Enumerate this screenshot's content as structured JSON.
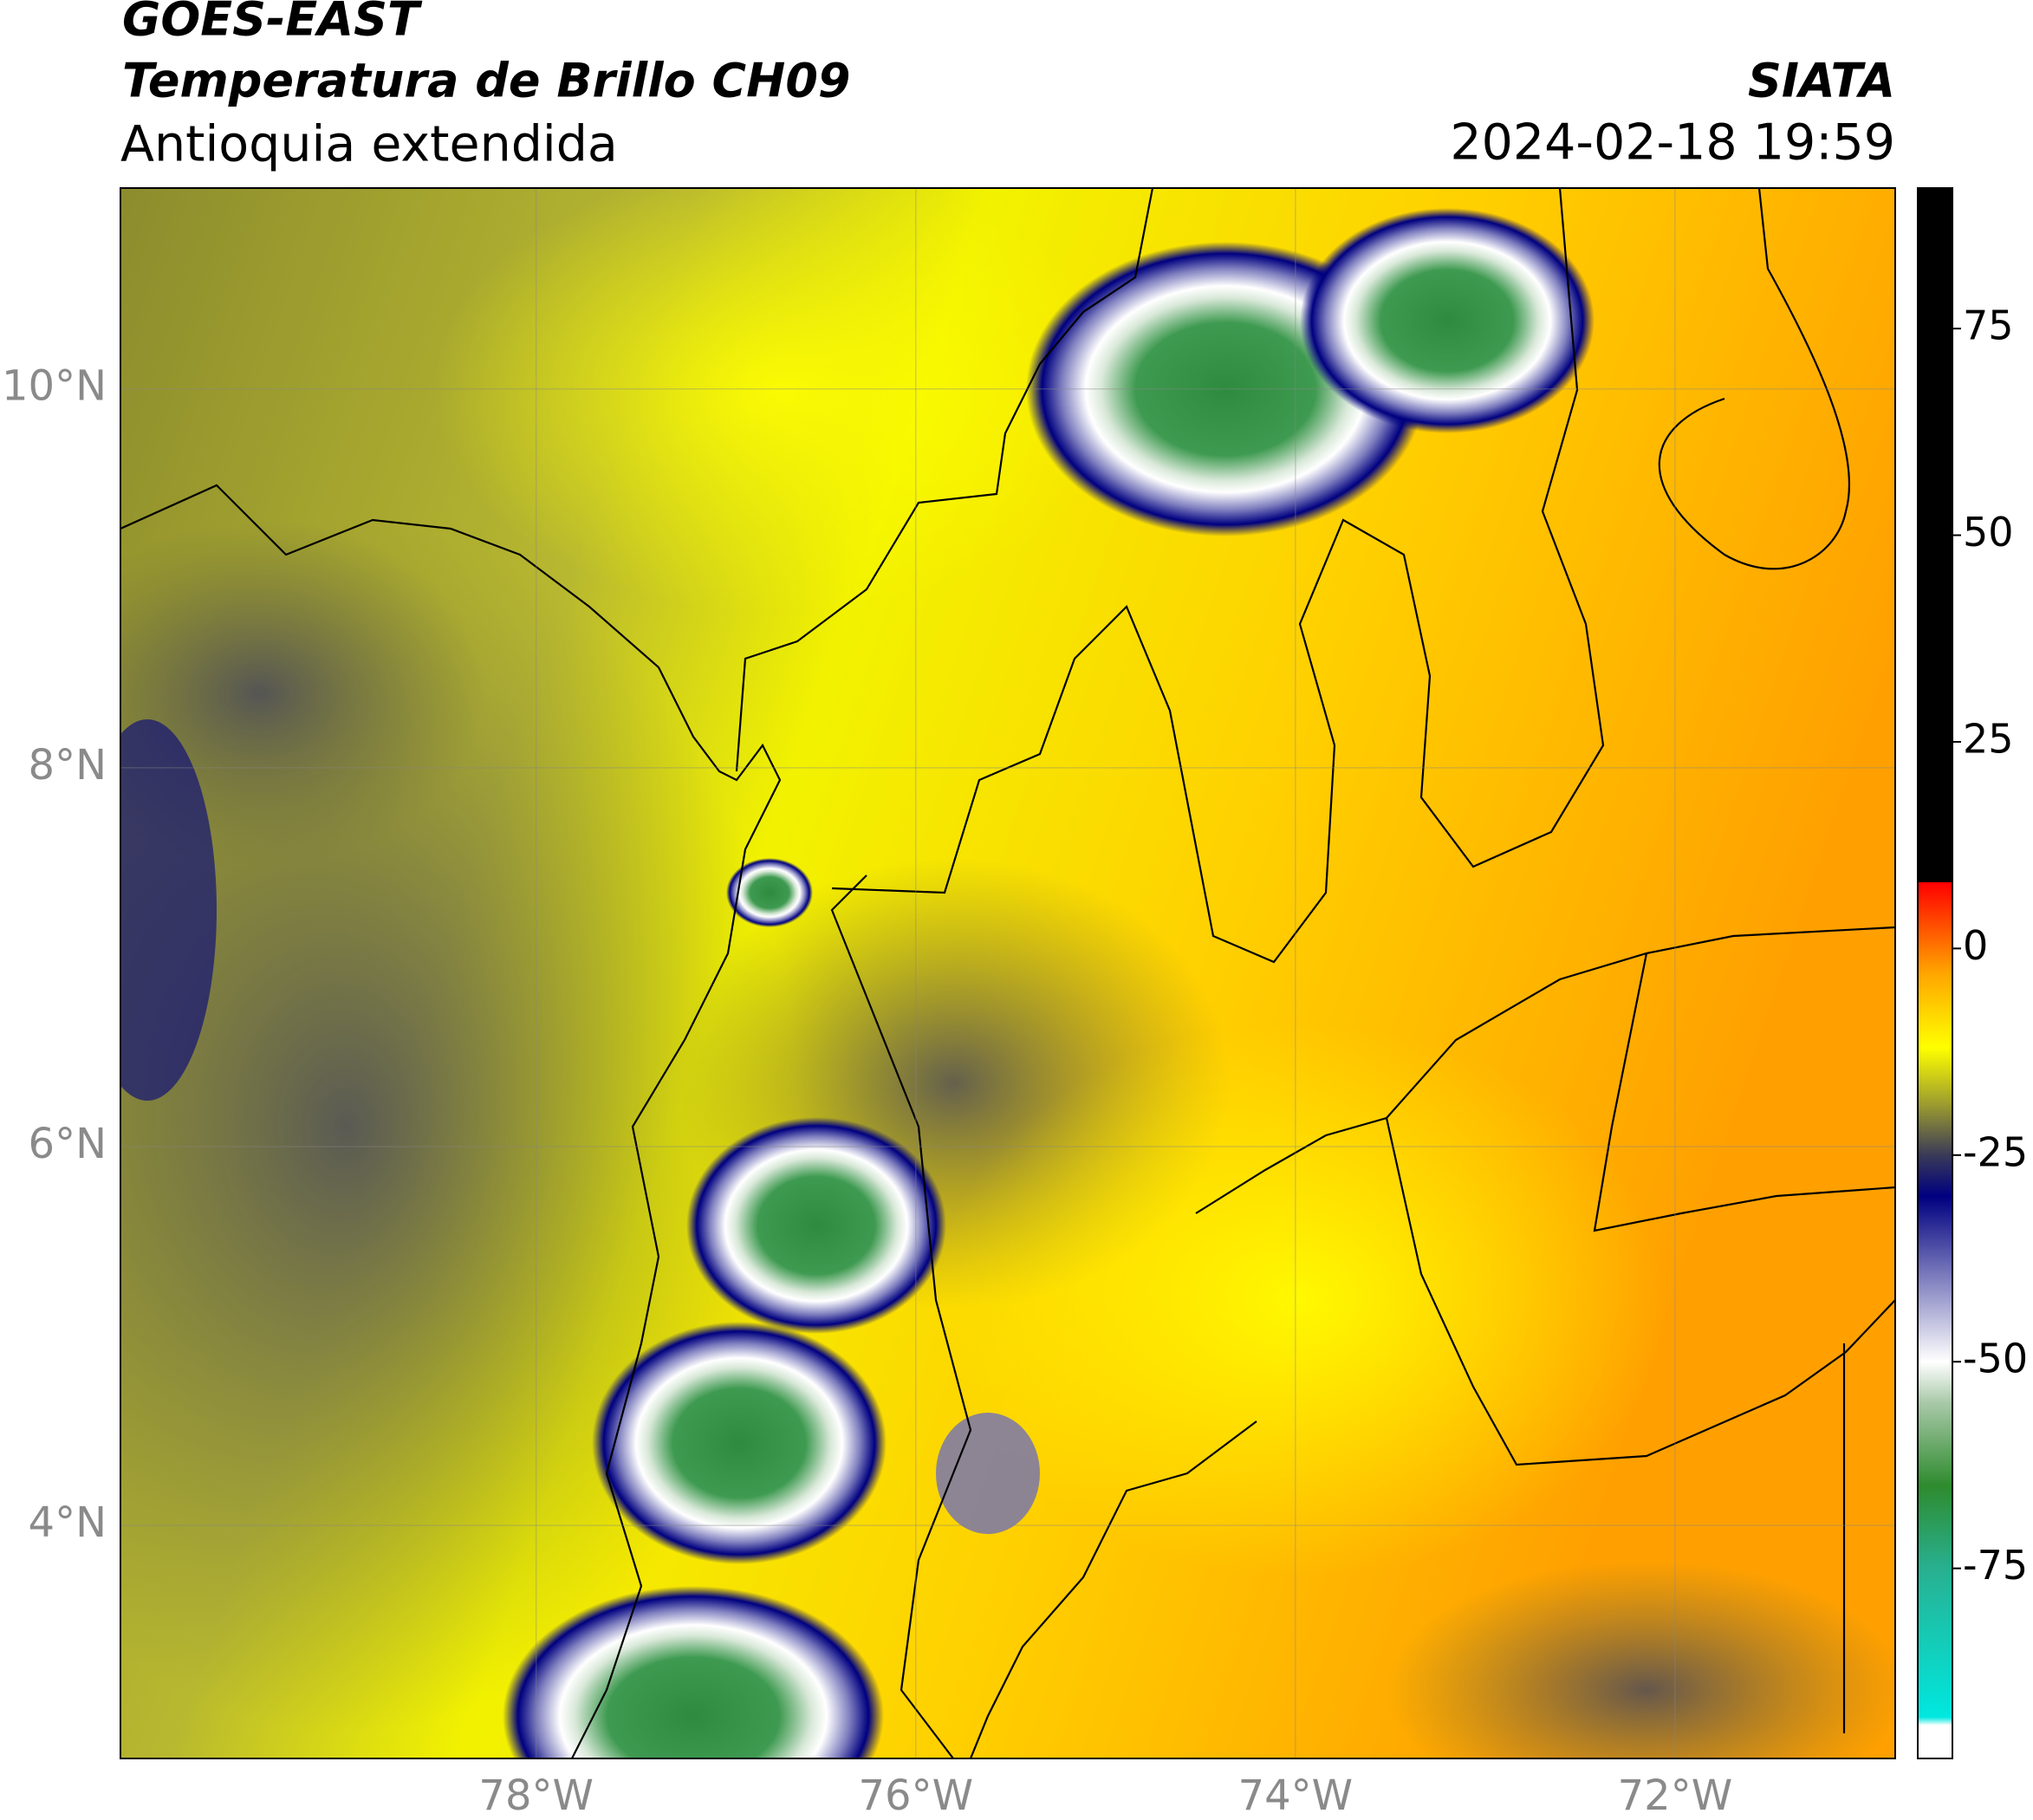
{
  "chart_data": {
    "type": "map",
    "title": "GOES-EAST",
    "subtitle": "Temperatura de Brillo CH09",
    "region": "Antioquia extendida",
    "source": "SIATA",
    "datetime": "2024-02-18 19:59",
    "xlim": [
      -80.19,
      -70.84
    ],
    "ylim": [
      2.77,
      11.06
    ],
    "xticks": [
      {
        "value": -78,
        "label": "78°W"
      },
      {
        "value": -76,
        "label": "76°W"
      },
      {
        "value": -74,
        "label": "74°W"
      },
      {
        "value": -72,
        "label": "72°W"
      }
    ],
    "yticks": [
      {
        "value": 4,
        "label": "4°N"
      },
      {
        "value": 6,
        "label": "6°N"
      },
      {
        "value": 8,
        "label": "8°N"
      },
      {
        "value": 10,
        "label": "10°N"
      }
    ],
    "grid": true,
    "colorbar": {
      "lim": [
        -98,
        92
      ],
      "ticks": [
        -75,
        -50,
        -25,
        0,
        25,
        50,
        75
      ],
      "colormap": [
        {
          "value": -98,
          "color": "#ffffff"
        },
        {
          "value": -94,
          "color": "#ffffff"
        },
        {
          "value": -93,
          "color": "#00e8e0"
        },
        {
          "value": -75,
          "color": "#28b090"
        },
        {
          "value": -65,
          "color": "#2e8b2e"
        },
        {
          "value": -55,
          "color": "#a8c8a8"
        },
        {
          "value": -50,
          "color": "#ffffff"
        },
        {
          "value": -40,
          "color": "#8080c0"
        },
        {
          "value": -30,
          "color": "#000080"
        },
        {
          "value": -25,
          "color": "#3a3a58"
        },
        {
          "value": -19,
          "color": "#9a9a30"
        },
        {
          "value": -12,
          "color": "#ffff00"
        },
        {
          "value": -3,
          "color": "#ffa500"
        },
        {
          "value": 8,
          "color": "#ff0000"
        },
        {
          "value": 8.01,
          "color": "#000000"
        },
        {
          "value": 92,
          "color": "#000000"
        }
      ]
    }
  }
}
